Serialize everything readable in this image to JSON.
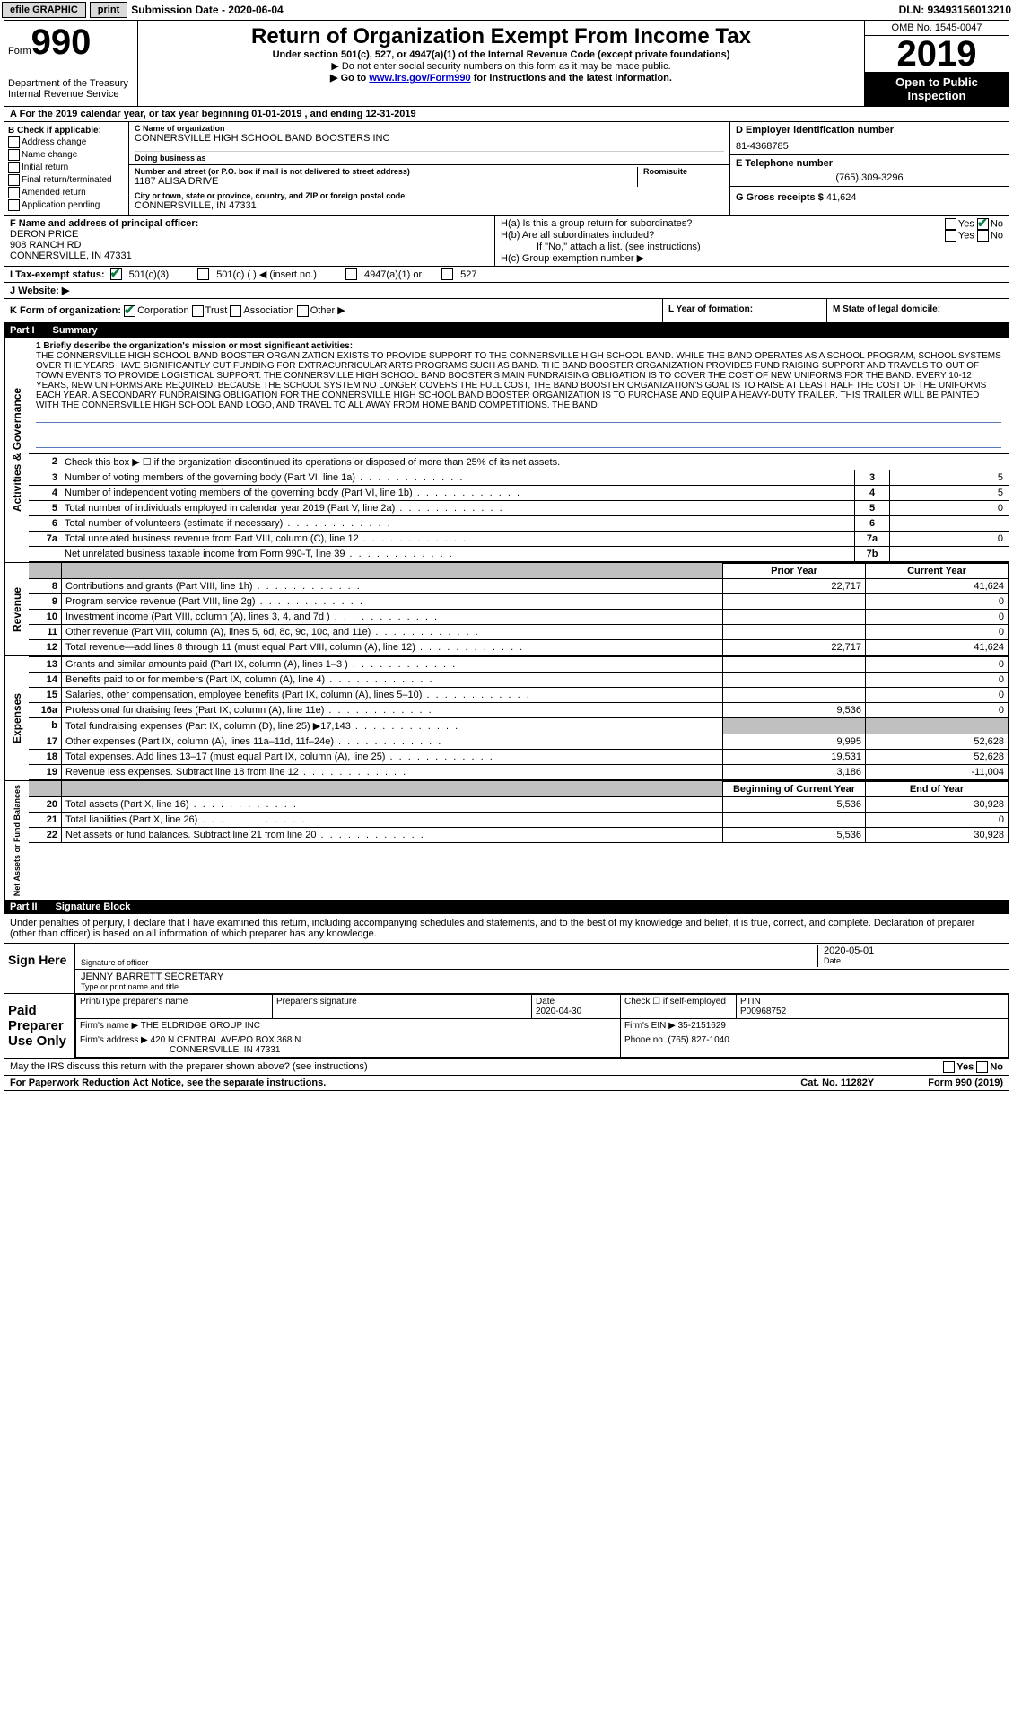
{
  "topbar": {
    "efile": "efile GRAPHIC",
    "print": "print",
    "sub_label": "Submission Date - ",
    "sub_date": "2020-06-04",
    "dln": "DLN: 93493156013210"
  },
  "header": {
    "form_word": "Form",
    "form_num": "990",
    "dept": "Department of the Treasury",
    "irs": "Internal Revenue Service",
    "title": "Return of Organization Exempt From Income Tax",
    "under": "Under section 501(c), 527, or 4947(a)(1) of the Internal Revenue Code (except private foundations)",
    "ssn_note": "▶ Do not enter social security numbers on this form as it may be made public.",
    "goto_pre": "▶ Go to ",
    "goto_link": "www.irs.gov/Form990",
    "goto_post": " for instructions and the latest information.",
    "omb": "OMB No. 1545-0047",
    "year": "2019",
    "open": "Open to Public Inspection"
  },
  "lineA": "For the 2019 calendar year, or tax year beginning 01-01-2019   , and ending 12-31-2019",
  "sectionB": {
    "label": "B Check if applicable:",
    "opts": [
      "Address change",
      "Name change",
      "Initial return",
      "Final return/terminated",
      "Amended return",
      "Application pending"
    ]
  },
  "sectionC": {
    "name_label": "C Name of organization",
    "name": "CONNERSVILLE HIGH SCHOOL BAND BOOSTERS INC",
    "dba_label": "Doing business as",
    "addr_label": "Number and street (or P.O. box if mail is not delivered to street address)",
    "addr": "1187 ALISA DRIVE",
    "room_label": "Room/suite",
    "city_label": "City or town, state or province, country, and ZIP or foreign postal code",
    "city": "CONNERSVILLE, IN  47331"
  },
  "sectionD": {
    "label": "D Employer identification number",
    "val": "81-4368785"
  },
  "sectionE": {
    "label": "E Telephone number",
    "val": "(765) 309-3296"
  },
  "sectionG": {
    "label": "G Gross receipts $",
    "val": "41,624"
  },
  "sectionF": {
    "label": "F  Name and address of principal officer:",
    "name": "DERON PRICE",
    "addr": "908 RANCH RD",
    "city": "CONNERSVILLE, IN  47331"
  },
  "sectionH": {
    "a": "H(a)  Is this a group return for subordinates?",
    "b": "H(b)  Are all subordinates included?",
    "note": "If \"No,\" attach a list. (see instructions)",
    "c": "H(c)  Group exemption number ▶",
    "yes": "Yes",
    "no": "No"
  },
  "sectionI": {
    "label": "I  Tax-exempt status:",
    "opts": [
      "501(c)(3)",
      "501(c) (   ) ◀ (insert no.)",
      "4947(a)(1) or",
      "527"
    ]
  },
  "sectionJ": {
    "label": "J  Website: ▶"
  },
  "sectionK": {
    "label": "K Form of organization:",
    "opts": [
      "Corporation",
      "Trust",
      "Association",
      "Other ▶"
    ],
    "L": "L Year of formation:",
    "M": "M State of legal domicile:"
  },
  "part1": {
    "header_num": "Part I",
    "header_title": "Summary",
    "side1": "Activities & Governance",
    "side2": "Revenue",
    "side3": "Expenses",
    "side4": "Net Assets or Fund Balances",
    "line1_label": "1  Briefly describe the organization's mission or most significant activities:",
    "mission": "THE CONNERSVILLE HIGH SCHOOL BAND BOOSTER ORGANIZATION EXISTS TO PROVIDE SUPPORT TO THE CONNERSVILLE HIGH SCHOOL BAND. WHILE THE BAND OPERATES AS A SCHOOL PROGRAM, SCHOOL SYSTEMS OVER THE YEARS HAVE SIGNIFICANTLY CUT FUNDING FOR EXTRACURRICULAR ARTS PROGRAMS SUCH AS BAND. THE BAND BOOSTER ORGANIZATION PROVIDES FUND RAISING SUPPORT AND TRAVELS TO OUT OF TOWN EVENTS TO PROVIDE LOGISTICAL SUPPORT. THE CONNERSVILLE HIGH SCHOOL BAND BOOSTER'S MAIN FUNDRAISING OBLIGATION IS TO COVER THE COST OF NEW UNIFORMS FOR THE BAND. EVERY 10-12 YEARS, NEW UNIFORMS ARE REQUIRED. BECAUSE THE SCHOOL SYSTEM NO LONGER COVERS THE FULL COST, THE BAND BOOSTER ORGANIZATION'S GOAL IS TO RAISE AT LEAST HALF THE COST OF THE UNIFORMS EACH YEAR. A SECONDARY FUNDRAISING OBLIGATION FOR THE CONNERSVILLE HIGH SCHOOL BAND BOOSTER ORGANIZATION IS TO PURCHASE AND EQUIP A HEAVY-DUTY TRAILER. THIS TRAILER WILL BE PAINTED WITH THE CONNERSVILLE HIGH SCHOOL BAND LOGO, AND TRAVEL TO ALL AWAY FROM HOME BAND COMPETITIONS. THE BAND",
    "line2": "Check this box ▶ ☐ if the organization discontinued its operations or disposed of more than 25% of its net assets.",
    "rows": [
      {
        "n": "3",
        "d": "Number of voting members of the governing body (Part VI, line 1a)",
        "box": "3",
        "v": "5"
      },
      {
        "n": "4",
        "d": "Number of independent voting members of the governing body (Part VI, line 1b)",
        "box": "4",
        "v": "5"
      },
      {
        "n": "5",
        "d": "Total number of individuals employed in calendar year 2019 (Part V, line 2a)",
        "box": "5",
        "v": "0"
      },
      {
        "n": "6",
        "d": "Total number of volunteers (estimate if necessary)",
        "box": "6",
        "v": ""
      },
      {
        "n": "7a",
        "d": "Total unrelated business revenue from Part VIII, column (C), line 12",
        "box": "7a",
        "v": "0"
      },
      {
        "n": "",
        "d": "Net unrelated business taxable income from Form 990-T, line 39",
        "box": "7b",
        "v": ""
      }
    ],
    "col_prior": "Prior Year",
    "col_curr": "Current Year",
    "col_beg": "Beginning of Current Year",
    "col_end": "End of Year",
    "revenue": [
      {
        "n": "8",
        "d": "Contributions and grants (Part VIII, line 1h)",
        "p": "22,717",
        "c": "41,624"
      },
      {
        "n": "9",
        "d": "Program service revenue (Part VIII, line 2g)",
        "p": "",
        "c": "0"
      },
      {
        "n": "10",
        "d": "Investment income (Part VIII, column (A), lines 3, 4, and 7d )",
        "p": "",
        "c": "0"
      },
      {
        "n": "11",
        "d": "Other revenue (Part VIII, column (A), lines 5, 6d, 8c, 9c, 10c, and 11e)",
        "p": "",
        "c": "0"
      },
      {
        "n": "12",
        "d": "Total revenue—add lines 8 through 11 (must equal Part VIII, column (A), line 12)",
        "p": "22,717",
        "c": "41,624"
      }
    ],
    "expenses": [
      {
        "n": "13",
        "d": "Grants and similar amounts paid (Part IX, column (A), lines 1–3 )",
        "p": "",
        "c": "0"
      },
      {
        "n": "14",
        "d": "Benefits paid to or for members (Part IX, column (A), line 4)",
        "p": "",
        "c": "0"
      },
      {
        "n": "15",
        "d": "Salaries, other compensation, employee benefits (Part IX, column (A), lines 5–10)",
        "p": "",
        "c": "0"
      },
      {
        "n": "16a",
        "d": "Professional fundraising fees (Part IX, column (A), line 11e)",
        "p": "9,536",
        "c": "0"
      },
      {
        "n": "b",
        "d": "Total fundraising expenses (Part IX, column (D), line 25) ▶17,143",
        "p": "GRAY",
        "c": "GRAY"
      },
      {
        "n": "17",
        "d": "Other expenses (Part IX, column (A), lines 11a–11d, 11f–24e)",
        "p": "9,995",
        "c": "52,628"
      },
      {
        "n": "18",
        "d": "Total expenses. Add lines 13–17 (must equal Part IX, column (A), line 25)",
        "p": "19,531",
        "c": "52,628"
      },
      {
        "n": "19",
        "d": "Revenue less expenses. Subtract line 18 from line 12",
        "p": "3,186",
        "c": "-11,004"
      }
    ],
    "netassets": [
      {
        "n": "20",
        "d": "Total assets (Part X, line 16)",
        "p": "5,536",
        "c": "30,928"
      },
      {
        "n": "21",
        "d": "Total liabilities (Part X, line 26)",
        "p": "",
        "c": "0"
      },
      {
        "n": "22",
        "d": "Net assets or fund balances. Subtract line 21 from line 20",
        "p": "5,536",
        "c": "30,928"
      }
    ]
  },
  "part2": {
    "header_num": "Part II",
    "header_title": "Signature Block",
    "decl": "Under penalties of perjury, I declare that I have examined this return, including accompanying schedules and statements, and to the best of my knowledge and belief, it is true, correct, and complete. Declaration of preparer (other than officer) is based on all information of which preparer has any knowledge.",
    "sign_here": "Sign Here",
    "sig_officer": "Signature of officer",
    "sig_date": "2020-05-01",
    "date_lbl": "Date",
    "officer_name": "JENNY BARRETT SECRETARY",
    "type_name": "Type or print name and title",
    "paid": "Paid Preparer Use Only",
    "prep_name_lbl": "Print/Type preparer's name",
    "prep_sig_lbl": "Preparer's signature",
    "prep_date_lbl": "Date",
    "prep_date": "2020-04-30",
    "self_emp": "Check ☐ if self-employed",
    "ptin_lbl": "PTIN",
    "ptin": "P00968752",
    "firm_name_lbl": "Firm's name    ▶",
    "firm_name": "THE ELDRIDGE GROUP INC",
    "firm_ein_lbl": "Firm's EIN ▶",
    "firm_ein": "35-2151629",
    "firm_addr_lbl": "Firm's address ▶",
    "firm_addr": "420 N CENTRAL AVE/PO BOX 368 N",
    "firm_city": "CONNERSVILLE, IN  47331",
    "phone_lbl": "Phone no.",
    "phone": "(765) 827-1040",
    "discuss": "May the IRS discuss this return with the preparer shown above? (see instructions)",
    "yes": "Yes",
    "no": "No"
  },
  "footer": {
    "pra": "For Paperwork Reduction Act Notice, see the separate instructions.",
    "cat": "Cat. No. 11282Y",
    "form": "Form 990 (2019)"
  }
}
